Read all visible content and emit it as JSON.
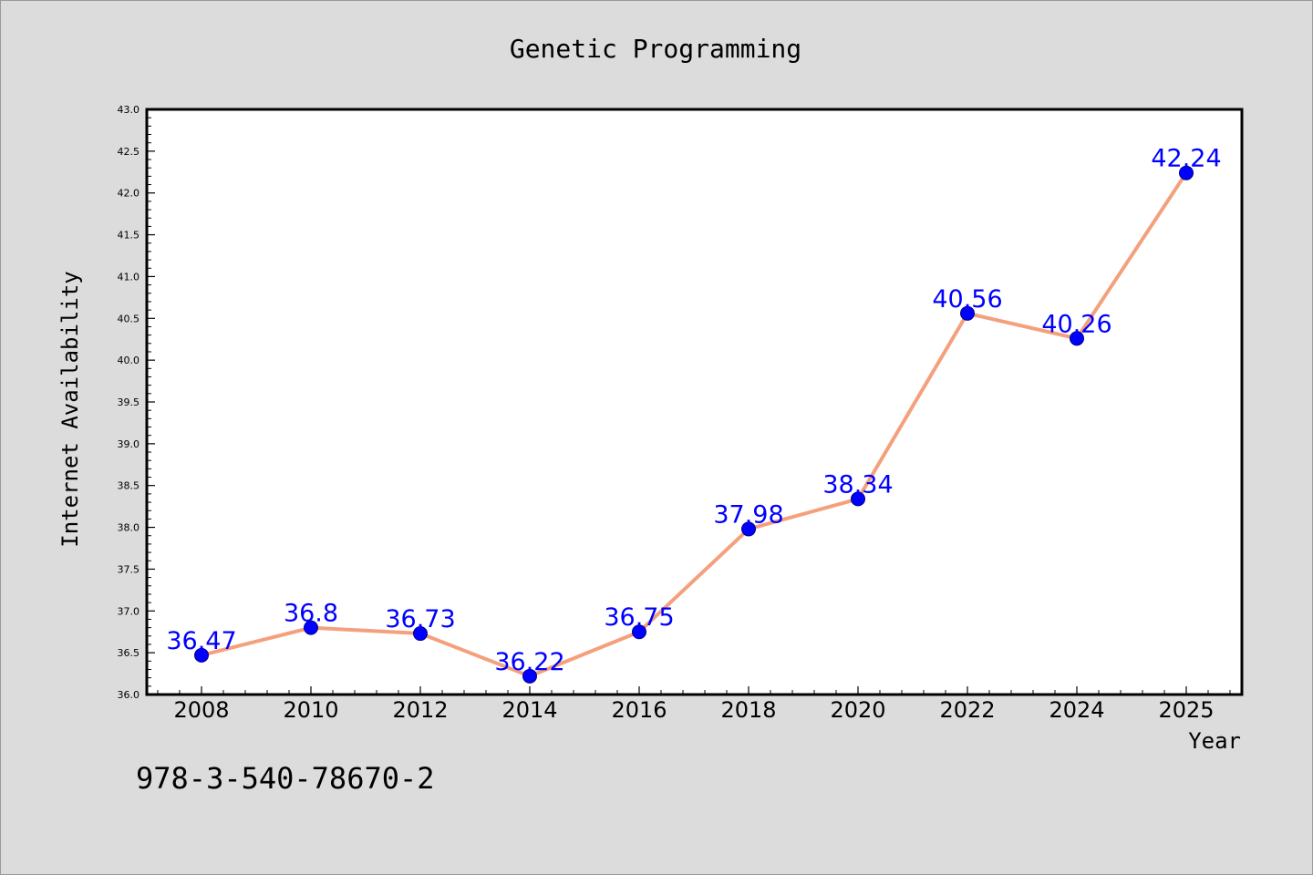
{
  "chart_data": {
    "type": "line",
    "title": "Genetic Programming",
    "xlabel": "Year",
    "ylabel": "Internet Availability",
    "categories": [
      "2008",
      "2010",
      "2012",
      "2014",
      "2016",
      "2018",
      "2020",
      "2022",
      "2024",
      "2025"
    ],
    "series": [
      {
        "values": [
          36.47,
          36.8,
          36.73,
          36.22,
          36.75,
          37.98,
          38.34,
          40.56,
          40.26,
          42.24
        ],
        "data_labels": [
          "36.47",
          "36.8",
          "36.73",
          "36.22",
          "36.75",
          "37.98",
          "38.34",
          "40.56",
          "40.26",
          "42.24"
        ],
        "line_color": "#f4a07c",
        "marker_color": "#0000ff"
      }
    ],
    "ylim": [
      36.0,
      43.0
    ],
    "yticks": [
      "36.0",
      "36.5",
      "37.0",
      "37.5",
      "38.0",
      "38.5",
      "39.0",
      "39.5",
      "40.0",
      "40.5",
      "41.0",
      "41.5",
      "42.0",
      "42.5",
      "43.0"
    ],
    "grid": false,
    "legend": "none"
  },
  "footer": {
    "isbn": "978-3-540-78670-2"
  },
  "colors": {
    "background": "#dcdcdc",
    "plot_background": "#ffffff",
    "line": "#f4a07c",
    "marker": "#0000ff",
    "data_label": "#0000ff"
  }
}
